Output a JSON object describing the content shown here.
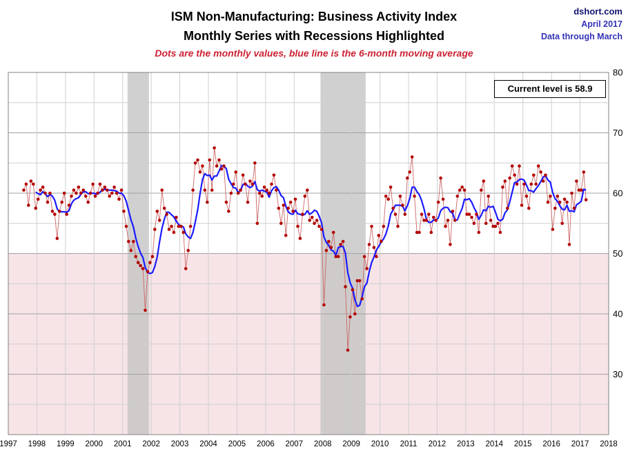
{
  "header": {
    "title_line1": "ISM Non-Manufacturing: Business Activity Index",
    "title_line2": "Monthly Series with Recessions Highlighted",
    "subtitle": "Dots are the monthly values, blue line is the 6-month moving average",
    "source": "dshort.com",
    "date": "April 2017",
    "data_through": "Data through March"
  },
  "annotation": {
    "current_level": "Current level is 58.9"
  },
  "chart_data": {
    "type": "scatter",
    "title": "ISM Non-Manufacturing: Business Activity Index",
    "xlabel": "",
    "ylabel": "",
    "xlim": [
      1997,
      2018
    ],
    "ylim": [
      20,
      80
    ],
    "x_ticks": [
      1997,
      1998,
      1999,
      2000,
      2001,
      2002,
      2003,
      2004,
      2005,
      2006,
      2007,
      2008,
      2009,
      2010,
      2011,
      2012,
      2013,
      2014,
      2015,
      2016,
      2017,
      2018
    ],
    "y_ticks": [
      30,
      40,
      50,
      60,
      70,
      80
    ],
    "grid": true,
    "threshold": 50,
    "ma_window": 6,
    "legend_note": "red dots = monthly values, blue line = 6-month moving average",
    "colors": {
      "dots": "#b30000",
      "dot_line": "#cc6666",
      "ma_line": "#1a1aff",
      "recession": "#c4c4c4",
      "below_threshold": "#f7e4e7",
      "grid_major": "#a0a0a0",
      "grid_minor": "#cfcfcf",
      "border": "#808080"
    },
    "recessions": [
      {
        "start": 2001.17,
        "end": 2001.92
      },
      {
        "start": 2007.92,
        "end": 2009.5
      }
    ],
    "start": {
      "year": 1997,
      "month": 7
    },
    "current_level": 58.9,
    "values": [
      60.5,
      61.5,
      58,
      62,
      61.5,
      57.5,
      59,
      60.5,
      61,
      60,
      58.5,
      60,
      57,
      56.5,
      52.5,
      57,
      58.5,
      60,
      56.5,
      58,
      59.5,
      60.5,
      60,
      61,
      60,
      60.5,
      59.5,
      58.5,
      60,
      61.5,
      59.5,
      60,
      61.5,
      60.5,
      61,
      60.5,
      59.5,
      60,
      61,
      60,
      59,
      60.5,
      57,
      54.5,
      52,
      50.5,
      52,
      49.5,
      48.5,
      48,
      47.5,
      40.6,
      47,
      48.5,
      49.5,
      54,
      57,
      55.5,
      60.5,
      57.5,
      56.5,
      54,
      54.5,
      53.5,
      56,
      54.5,
      54.5,
      53.5,
      47.5,
      50.5,
      54.5,
      60.5,
      65,
      65.5,
      63.5,
      64.5,
      60.5,
      58.5,
      65.5,
      60.5,
      67.5,
      64.5,
      65.5,
      64,
      64.5,
      58.5,
      57,
      60,
      61.5,
      63.5,
      60,
      60.5,
      63,
      61.5,
      58.5,
      62,
      61.5,
      65,
      55,
      60,
      59.5,
      61,
      60.5,
      60,
      61.5,
      63,
      60.5,
      57.5,
      55,
      58,
      53,
      57.5,
      58.5,
      57,
      59,
      54.5,
      52.5,
      56.5,
      59.5,
      60.5,
      55.5,
      56,
      55,
      55.5,
      54.5,
      54,
      41.5,
      50.5,
      52,
      51,
      53.5,
      49.5,
      49.5,
      51.5,
      52,
      44.5,
      34,
      39.5,
      44,
      40,
      45.5,
      45.5,
      42.5,
      49.5,
      47.5,
      51.5,
      54.5,
      51,
      49.5,
      53,
      52,
      54.5,
      59.5,
      59,
      61,
      57.5,
      56.5,
      54.5,
      59.5,
      58,
      56.5,
      62.5,
      63.5,
      66,
      59.5,
      53.5,
      53.5,
      56.5,
      55.5,
      55.5,
      56.5,
      53.5,
      56,
      55.5,
      58.5,
      62.5,
      59,
      54.5,
      55.5,
      51.5,
      57,
      55.5,
      59.5,
      60.5,
      61,
      60.5,
      56.5,
      56.5,
      56,
      55,
      56.5,
      53.5,
      60.5,
      62,
      55,
      59.5,
      55.5,
      54.5,
      54.5,
      55,
      53.5,
      61,
      62,
      57.5,
      62.5,
      64.5,
      63,
      61.5,
      64.5,
      58,
      61.5,
      59.5,
      57.5,
      61.5,
      63,
      61.5,
      64.5,
      63.5,
      62,
      63,
      58.5,
      59.5,
      54,
      57.5,
      59.5,
      58.5,
      55,
      59,
      58.5,
      51.5,
      60,
      57.5,
      62,
      60.5,
      60.5,
      63.5,
      58.9
    ]
  }
}
